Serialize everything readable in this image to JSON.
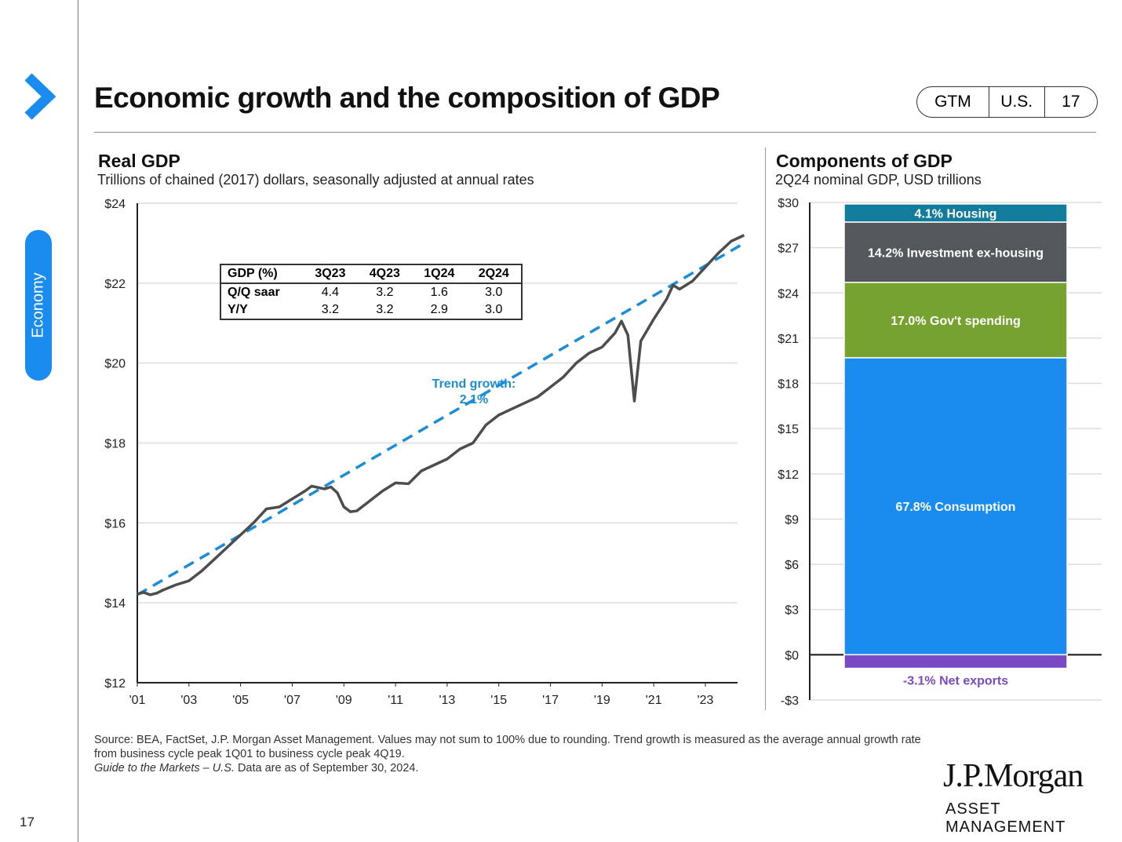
{
  "page": {
    "title": "Economic growth and the composition of GDP",
    "section": "Economy",
    "page_number": "17",
    "badge": [
      "GTM",
      "U.S.",
      "17"
    ],
    "source_line1": "Source: BEA, FactSet, J.P. Morgan Asset Management. Values may not sum to 100% due to rounding. Trend growth is measured as the average annual growth rate from business cycle peak 1Q01 to business cycle peak 4Q19.",
    "source_italic": "Guide to the Markets – U.S.",
    "source_line2": " Data are as of September 30, 2024.",
    "logo": "J.P.Morgan",
    "logo_sub": "ASSET MANAGEMENT"
  },
  "gdp_table": {
    "headers": [
      "GDP (%)",
      "3Q23",
      "4Q23",
      "1Q24",
      "2Q24"
    ],
    "rows": [
      [
        "Q/Q saar",
        "4.4",
        "3.2",
        "1.6",
        "3.0"
      ],
      [
        "Y/Y",
        "3.2",
        "3.2",
        "2.9",
        "3.0"
      ]
    ]
  },
  "chart_data": [
    {
      "type": "line",
      "title": "Real GDP",
      "subtitle": "Trillions of chained (2017) dollars, seasonally adjusted at annual rates",
      "ylim": [
        12,
        24
      ],
      "xlim": [
        2001,
        2024.5
      ],
      "yticks": [
        12,
        14,
        16,
        18,
        20,
        22,
        24
      ],
      "ytick_labels": [
        "$12",
        "$14",
        "$16",
        "$18",
        "$20",
        "$22",
        "$24"
      ],
      "xticks": [
        2001,
        2003,
        2005,
        2007,
        2009,
        2011,
        2013,
        2015,
        2017,
        2019,
        2021,
        2023
      ],
      "xtick_labels": [
        "'01",
        "'03",
        "'05",
        "'07",
        "'09",
        "'11",
        "'13",
        "'15",
        "'17",
        "'19",
        "'21",
        "'23"
      ],
      "series": [
        {
          "name": "Real GDP",
          "color": "#4d4d4f",
          "x": [
            2001,
            2001.25,
            2001.5,
            2001.75,
            2002,
            2002.5,
            2003,
            2003.5,
            2004,
            2004.5,
            2005,
            2005.5,
            2006,
            2006.5,
            2007,
            2007.5,
            2007.75,
            2008.25,
            2008.5,
            2008.75,
            2009,
            2009.25,
            2009.5,
            2010,
            2010.5,
            2011,
            2011.5,
            2012,
            2012.5,
            2013,
            2013.5,
            2014,
            2014.5,
            2015,
            2015.5,
            2016,
            2016.5,
            2017,
            2017.5,
            2018,
            2018.5,
            2019,
            2019.5,
            2019.75,
            2020,
            2020.25,
            2020.5,
            2021,
            2021.5,
            2021.75,
            2022,
            2022.5,
            2023,
            2023.5,
            2024,
            2024.5
          ],
          "y": [
            14.22,
            14.26,
            14.2,
            14.24,
            14.32,
            14.45,
            14.55,
            14.8,
            15.1,
            15.4,
            15.7,
            16.0,
            16.35,
            16.4,
            16.6,
            16.8,
            16.92,
            16.85,
            16.9,
            16.75,
            16.4,
            16.28,
            16.3,
            16.55,
            16.8,
            17.0,
            16.98,
            17.3,
            17.45,
            17.6,
            17.85,
            18.0,
            18.45,
            18.7,
            18.85,
            19.0,
            19.15,
            19.4,
            19.65,
            20.0,
            20.25,
            20.4,
            20.75,
            21.05,
            20.7,
            19.05,
            20.55,
            21.1,
            21.6,
            21.95,
            21.85,
            22.05,
            22.4,
            22.75,
            23.05,
            23.2
          ]
        },
        {
          "name": "Trend growth",
          "color": "#1a8cd8",
          "dashed": true,
          "x": [
            2001,
            2024.5
          ],
          "y": [
            14.2,
            23.0
          ]
        }
      ],
      "annotation": [
        "Trend growth:",
        "2.1%"
      ]
    },
    {
      "type": "bar",
      "stacked": true,
      "title": "Components of GDP",
      "subtitle": "2Q24 nominal GDP, USD trillions",
      "ylim": [
        -3,
        30
      ],
      "yticks": [
        -3,
        0,
        3,
        6,
        9,
        12,
        15,
        18,
        21,
        24,
        27,
        30
      ],
      "ytick_labels": [
        "-$3",
        "$0",
        "$3",
        "$6",
        "$9",
        "$12",
        "$15",
        "$18",
        "$21",
        "$24",
        "$27",
        "$30"
      ],
      "segments": [
        {
          "label": "67.8% Consumption",
          "share": 67.8,
          "from": 0,
          "to": 19.7,
          "color": "#1a8cf0"
        },
        {
          "label": "17.0% Gov't spending",
          "share": 17.0,
          "from": 19.7,
          "to": 24.7,
          "color": "#76a22f"
        },
        {
          "label": "14.2% Investment ex-housing",
          "share": 14.2,
          "from": 24.7,
          "to": 28.7,
          "color": "#54585c"
        },
        {
          "label": "4.1% Housing",
          "share": 4.1,
          "from": 28.7,
          "to": 29.9,
          "color": "#127c9c"
        },
        {
          "label": "-3.1% Net exports",
          "share": -3.1,
          "from": -0.9,
          "to": 0,
          "color": "#7a4ac4"
        }
      ]
    }
  ]
}
